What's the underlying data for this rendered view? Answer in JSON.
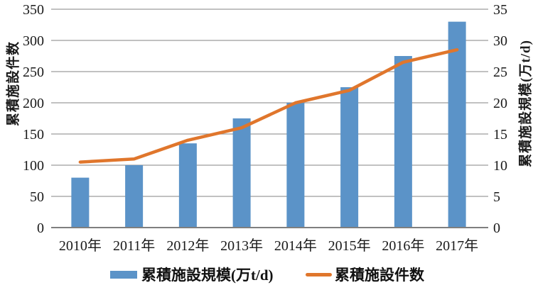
{
  "chart_data": {
    "type": "bar+line combo",
    "categories": [
      "2010年",
      "2011年",
      "2012年",
      "2013年",
      "2014年",
      "2015年",
      "2016年",
      "2017年"
    ],
    "series": [
      {
        "name": "累積施設規模(万t/d)",
        "type": "bar",
        "axis": "right",
        "color": "#5B93C8",
        "values": [
          8,
          10,
          13.5,
          17.5,
          20,
          22.5,
          27.5,
          33
        ]
      },
      {
        "name": "累積施設件数",
        "type": "line",
        "axis": "left",
        "color": "#E0762C",
        "values": [
          105,
          110,
          140,
          160,
          200,
          220,
          265,
          285
        ]
      }
    ],
    "left_axis": {
      "label": "累積施設件数",
      "min": 0,
      "max": 350,
      "step": 50,
      "ticks": [
        "0",
        "50",
        "100",
        "150",
        "200",
        "250",
        "300",
        "350"
      ]
    },
    "right_axis": {
      "label": "累積施設規模(万t/d)",
      "min": 0,
      "max": 35,
      "step": 5,
      "ticks": [
        "0",
        "5",
        "10",
        "15",
        "20",
        "25",
        "30",
        "35"
      ]
    },
    "grid": true,
    "legend_position": "bottom"
  },
  "colors": {
    "bar": "#5B93C8",
    "line": "#E0762C",
    "grid": "#9C9C9C",
    "axis": "#7F7F7F",
    "text": "#1a1a1a"
  }
}
